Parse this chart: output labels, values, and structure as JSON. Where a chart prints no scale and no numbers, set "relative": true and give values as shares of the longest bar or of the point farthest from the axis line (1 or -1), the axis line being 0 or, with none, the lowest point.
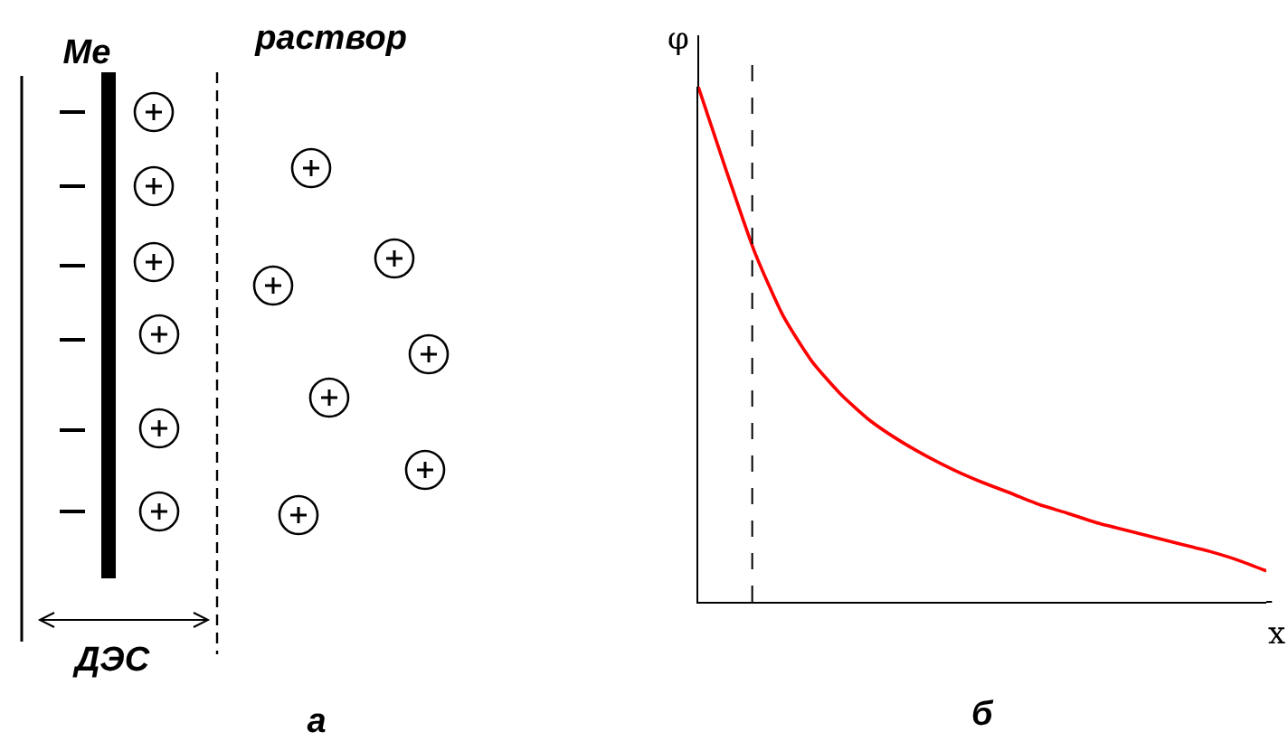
{
  "chart_data": [
    {
      "type": "other",
      "annotations": [
        "Ме",
        "раствор",
        "ДЭС",
        "а"
      ]
    },
    {
      "type": "line",
      "relative": true,
      "color": "#ff0000",
      "xlabel": "x",
      "ylabel": "φ",
      "annotations": [
        "б"
      ],
      "categories": [
        null,
        null,
        null,
        null,
        null,
        null,
        null,
        null,
        null,
        null,
        null,
        null,
        null,
        null,
        null,
        null,
        null,
        null,
        null,
        null,
        null
      ],
      "values": [
        1.0,
        0.835,
        0.677,
        0.554,
        0.467,
        0.404,
        0.354,
        0.316,
        0.284,
        0.256,
        0.232,
        0.211,
        0.189,
        0.172,
        0.154,
        0.14,
        0.126,
        0.112,
        0.098,
        0.081,
        0.06
      ],
      "marker": "none"
    }
  ]
}
